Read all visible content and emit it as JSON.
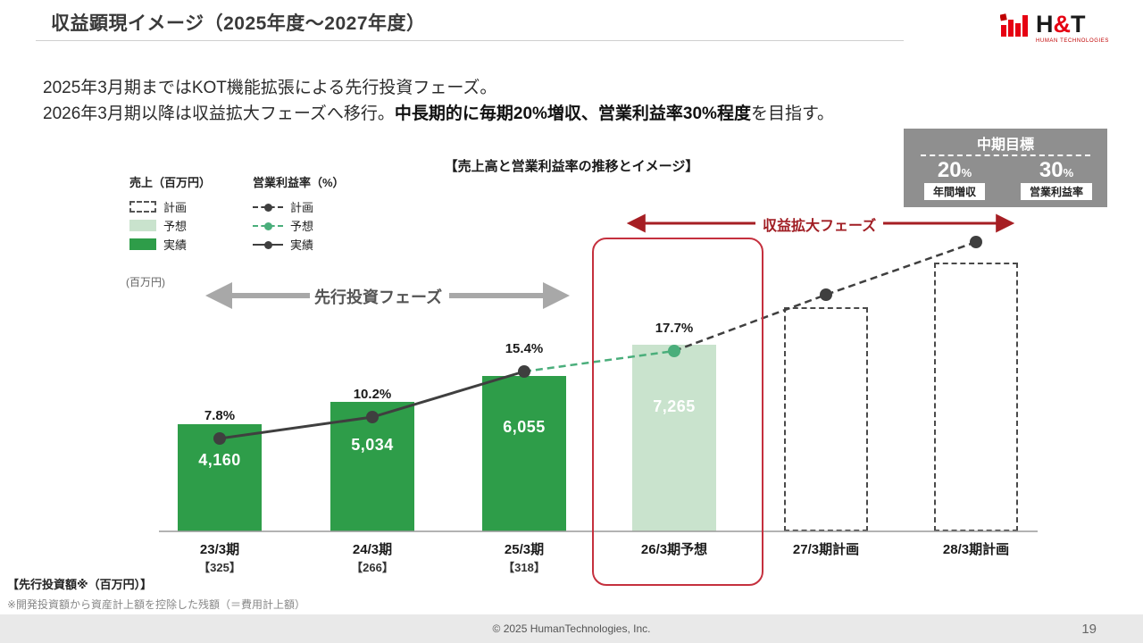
{
  "header": {
    "title": "収益顕現イメージ（2025年度～2027年度）",
    "logo": {
      "h": "H",
      "amp": "&",
      "t": "T",
      "subtext": "HUMAN TECHNOLOGIES"
    }
  },
  "intro": {
    "line1": "2025年3月期まではKOT機能拡張による先行投資フェーズ。",
    "line2_normal": "2026年3月期以降は収益拡大フェーズへ移行。",
    "line2_bold": "中長期的に毎期20%増収、営業利益率30%程度",
    "line2_tail": "を目指す。"
  },
  "chart": {
    "title": "【売上高と営業利益率の推移とイメージ】",
    "unit_label": "(百万円)",
    "legend_sales": {
      "header": "売上（百万円）",
      "plan": "計画",
      "forecast": "予想",
      "actual": "実績"
    },
    "legend_margin": {
      "header": "営業利益率（%）",
      "plan": "計画",
      "forecast": "予想",
      "actual": "実績"
    },
    "phase_invest_label": "先行投資フェーズ",
    "phase_expand_label": "収益拡大フェーズ",
    "mid_target": {
      "title": "中期目標",
      "value1": "20",
      "value2": "30",
      "percent": "%",
      "label1": "年間増収",
      "label2": "営業利益率"
    }
  },
  "chart_data": {
    "type": "bar+line combo",
    "title": "【売上高と営業利益率の推移とイメージ】",
    "categories": [
      "23/3期",
      "24/3期",
      "25/3期",
      "26/3期予想",
      "27/3期計画",
      "28/3期計画"
    ],
    "category_sub": [
      "【325】",
      "【266】",
      "【318】",
      "",
      "",
      ""
    ],
    "bar_series": {
      "name": "売上（百万円）",
      "values": [
        4160,
        5034,
        6055,
        7265,
        8720,
        10460
      ],
      "labels": [
        "4,160",
        "5,034",
        "6,055",
        "7,265",
        "",
        ""
      ],
      "types": [
        "actual",
        "actual",
        "actual",
        "forecast",
        "plan",
        "plan"
      ],
      "plan_values_estimated": true
    },
    "line_series": {
      "name": "営業利益率（%）",
      "values": [
        7.8,
        10.2,
        15.4,
        17.7,
        24,
        30
      ],
      "labels": [
        "7.8%",
        "10.2%",
        "15.4%",
        "17.7%",
        "",
        ""
      ],
      "types": [
        "actual",
        "actual",
        "actual",
        "forecast",
        "plan",
        "plan"
      ],
      "plan_values_estimated": true
    },
    "legend_position": "top-left",
    "grid": false
  },
  "notes": {
    "invest_title": "【先行投資額※（百万円）】",
    "footnote": "※開発投資額から資産計上額を控除した残額（＝費用計上額）"
  },
  "footer": {
    "copyright": "© 2025  HumanTechnologies, Inc.",
    "page_number": "19"
  },
  "colors": {
    "green_actual": "#2e9d49",
    "green_forecast_fill": "#c9e3cd",
    "green_line": "#4aae7b",
    "dark": "#3f3f3f",
    "red_accent": "#a61e23",
    "gray_arrow": "#a8a8a8",
    "highlight_border": "#c5303e",
    "logo_red": "#e60012",
    "mid_target_bg": "#8f8f8f"
  }
}
